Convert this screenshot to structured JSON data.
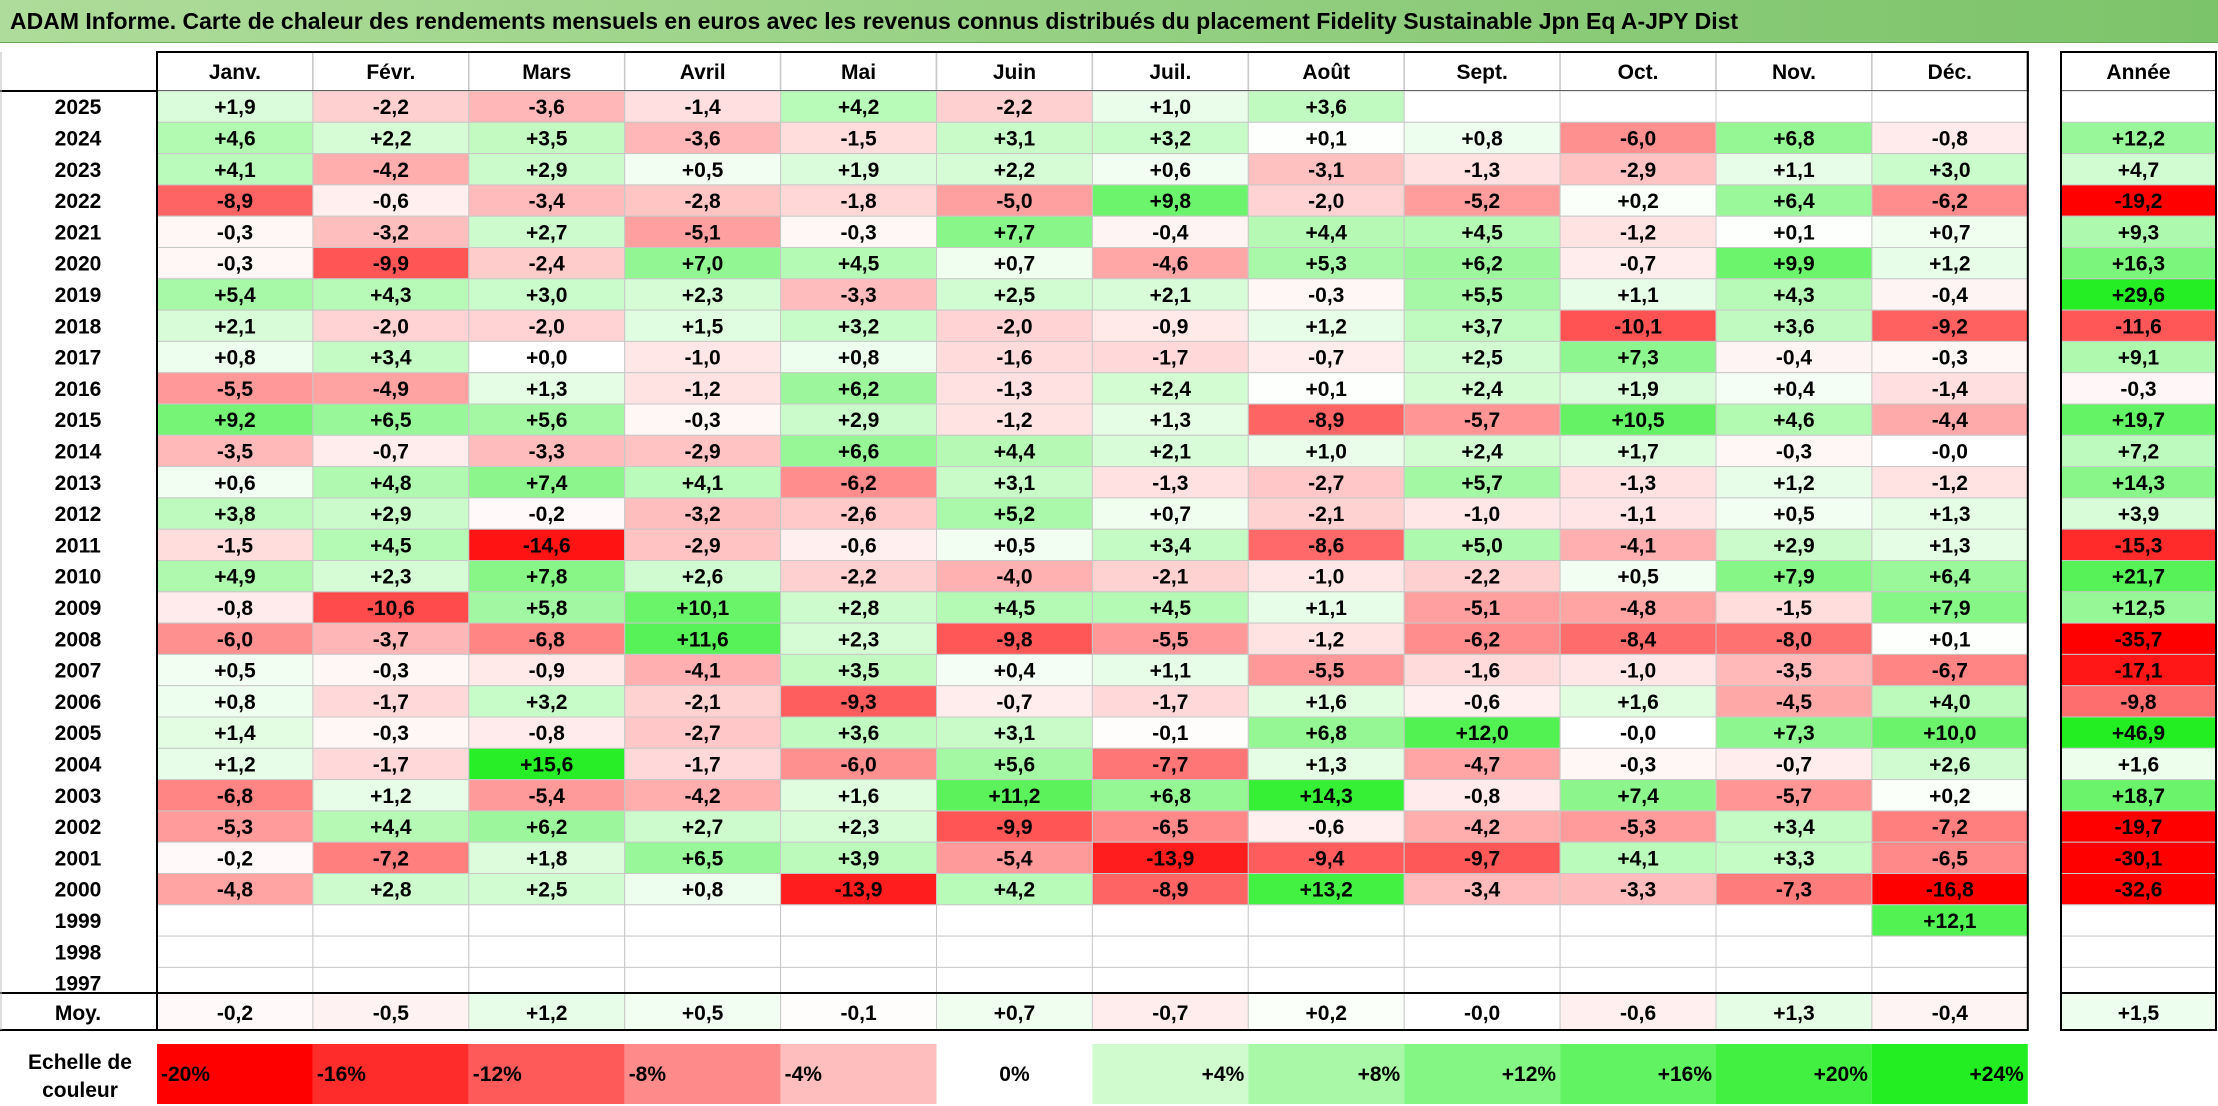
{
  "title": "ADAM Informe. Carte de chaleur des rendements mensuels en euros avec les revenus connus distribués du placement Fidelity Sustainable Jpn Eq A-JPY Dist",
  "chart_data": {
    "type": "heatmap",
    "months": [
      "Janv.",
      "Févr.",
      "Mars",
      "Avril",
      "Mai",
      "Juin",
      "Juil.",
      "Août",
      "Sept.",
      "Oct.",
      "Nov.",
      "Déc."
    ],
    "year_header": "Année",
    "years": [
      "2025",
      "2024",
      "2023",
      "2022",
      "2021",
      "2020",
      "2019",
      "2018",
      "2017",
      "2016",
      "2015",
      "2014",
      "2013",
      "2012",
      "2011",
      "2010",
      "2009",
      "2008",
      "2007",
      "2006",
      "2005",
      "2004",
      "2003",
      "2002",
      "2001",
      "2000",
      "1999",
      "1998",
      "1997"
    ],
    "values": [
      [
        "+1,9",
        "-2,2",
        "-3,6",
        "-1,4",
        "+4,2",
        "-2,2",
        "+1,0",
        "+3,6",
        "",
        "",
        "",
        ""
      ],
      [
        "+4,6",
        "+2,2",
        "+3,5",
        "-3,6",
        "-1,5",
        "+3,1",
        "+3,2",
        "+0,1",
        "+0,8",
        "-6,0",
        "+6,8",
        "-0,8"
      ],
      [
        "+4,1",
        "-4,2",
        "+2,9",
        "+0,5",
        "+1,9",
        "+2,2",
        "+0,6",
        "-3,1",
        "-1,3",
        "-2,9",
        "+1,1",
        "+3,0"
      ],
      [
        "-8,9",
        "-0,6",
        "-3,4",
        "-2,8",
        "-1,8",
        "-5,0",
        "+9,8",
        "-2,0",
        "-5,2",
        "+0,2",
        "+6,4",
        "-6,2"
      ],
      [
        "-0,3",
        "-3,2",
        "+2,7",
        "-5,1",
        "-0,3",
        "+7,7",
        "-0,4",
        "+4,4",
        "+4,5",
        "-1,2",
        "+0,1",
        "+0,7"
      ],
      [
        "-0,3",
        "-9,9",
        "-2,4",
        "+7,0",
        "+4,5",
        "+0,7",
        "-4,6",
        "+5,3",
        "+6,2",
        "-0,7",
        "+9,9",
        "+1,2"
      ],
      [
        "+5,4",
        "+4,3",
        "+3,0",
        "+2,3",
        "-3,3",
        "+2,5",
        "+2,1",
        "-0,3",
        "+5,5",
        "+1,1",
        "+4,3",
        "-0,4"
      ],
      [
        "+2,1",
        "-2,0",
        "-2,0",
        "+1,5",
        "+3,2",
        "-2,0",
        "-0,9",
        "+1,2",
        "+3,7",
        "-10,1",
        "+3,6",
        "-9,2"
      ],
      [
        "+0,8",
        "+3,4",
        "+0,0",
        "-1,0",
        "+0,8",
        "-1,6",
        "-1,7",
        "-0,7",
        "+2,5",
        "+7,3",
        "-0,4",
        "-0,3"
      ],
      [
        "-5,5",
        "-4,9",
        "+1,3",
        "-1,2",
        "+6,2",
        "-1,3",
        "+2,4",
        "+0,1",
        "+2,4",
        "+1,9",
        "+0,4",
        "-1,4"
      ],
      [
        "+9,2",
        "+6,5",
        "+5,6",
        "-0,3",
        "+2,9",
        "-1,2",
        "+1,3",
        "-8,9",
        "-5,7",
        "+10,5",
        "+4,6",
        "-4,4"
      ],
      [
        "-3,5",
        "-0,7",
        "-3,3",
        "-2,9",
        "+6,6",
        "+4,4",
        "+2,1",
        "+1,0",
        "+2,4",
        "+1,7",
        "-0,3",
        "-0,0"
      ],
      [
        "+0,6",
        "+4,8",
        "+7,4",
        "+4,1",
        "-6,2",
        "+3,1",
        "-1,3",
        "-2,7",
        "+5,7",
        "-1,3",
        "+1,2",
        "-1,2"
      ],
      [
        "+3,8",
        "+2,9",
        "-0,2",
        "-3,2",
        "-2,6",
        "+5,2",
        "+0,7",
        "-2,1",
        "-1,0",
        "-1,1",
        "+0,5",
        "+1,3"
      ],
      [
        "-1,5",
        "+4,5",
        "-14,6",
        "-2,9",
        "-0,6",
        "+0,5",
        "+3,4",
        "-8,6",
        "+5,0",
        "-4,1",
        "+2,9",
        "+1,3"
      ],
      [
        "+4,9",
        "+2,3",
        "+7,8",
        "+2,6",
        "-2,2",
        "-4,0",
        "-2,1",
        "-1,0",
        "-2,2",
        "+0,5",
        "+7,9",
        "+6,4"
      ],
      [
        "-0,8",
        "-10,6",
        "+5,8",
        "+10,1",
        "+2,8",
        "+4,5",
        "+4,5",
        "+1,1",
        "-5,1",
        "-4,8",
        "-1,5",
        "+7,9"
      ],
      [
        "-6,0",
        "-3,7",
        "-6,8",
        "+11,6",
        "+2,3",
        "-9,8",
        "-5,5",
        "-1,2",
        "-6,2",
        "-8,4",
        "-8,0",
        "+0,1"
      ],
      [
        "+0,5",
        "-0,3",
        "-0,9",
        "-4,1",
        "+3,5",
        "+0,4",
        "+1,1",
        "-5,5",
        "-1,6",
        "-1,0",
        "-3,5",
        "-6,7"
      ],
      [
        "+0,8",
        "-1,7",
        "+3,2",
        "-2,1",
        "-9,3",
        "-0,7",
        "-1,7",
        "+1,6",
        "-0,6",
        "+1,6",
        "-4,5",
        "+4,0"
      ],
      [
        "+1,4",
        "-0,3",
        "-0,8",
        "-2,7",
        "+3,6",
        "+3,1",
        "-0,1",
        "+6,8",
        "+12,0",
        "-0,0",
        "+7,3",
        "+10,0"
      ],
      [
        "+1,2",
        "-1,7",
        "+15,6",
        "-1,7",
        "-6,0",
        "+5,6",
        "-7,7",
        "+1,3",
        "-4,7",
        "-0,3",
        "-0,7",
        "+2,6"
      ],
      [
        "-6,8",
        "+1,2",
        "-5,4",
        "-4,2",
        "+1,6",
        "+11,2",
        "+6,8",
        "+14,3",
        "-0,8",
        "+7,4",
        "-5,7",
        "+0,2"
      ],
      [
        "-5,3",
        "+4,4",
        "+6,2",
        "+2,7",
        "+2,3",
        "-9,9",
        "-6,5",
        "-0,6",
        "-4,2",
        "-5,3",
        "+3,4",
        "-7,2"
      ],
      [
        "-0,2",
        "-7,2",
        "+1,8",
        "+6,5",
        "+3,9",
        "-5,4",
        "-13,9",
        "-9,4",
        "-9,7",
        "+4,1",
        "+3,3",
        "-6,5"
      ],
      [
        "-4,8",
        "+2,8",
        "+2,5",
        "+0,8",
        "-13,9",
        "+4,2",
        "-8,9",
        "+13,2",
        "-3,4",
        "-3,3",
        "-7,3",
        "-16,8"
      ],
      [
        "",
        "",
        "",
        "",
        "",
        "",
        "",
        "",
        "",
        "",
        "",
        "+12,1"
      ],
      [
        "",
        "",
        "",
        "",
        "",
        "",
        "",
        "",
        "",
        "",
        "",
        ""
      ],
      [
        "",
        "",
        "",
        "",
        "",
        "",
        "",
        "",
        "",
        "",
        "",
        ""
      ]
    ],
    "annual": [
      "",
      "+12,2",
      "+4,7",
      "-19,2",
      "+9,3",
      "+16,3",
      "+29,6",
      "-11,6",
      "+9,1",
      "-0,3",
      "+19,7",
      "+7,2",
      "+14,3",
      "+3,9",
      "-15,3",
      "+21,7",
      "+12,5",
      "-35,7",
      "-17,1",
      "-9,8",
      "+46,9",
      "+1,6",
      "+18,7",
      "-19,7",
      "-30,1",
      "-32,6",
      "",
      "",
      ""
    ],
    "average_label": "Moy.",
    "averages": [
      "-0,2",
      "-0,5",
      "+1,2",
      "+0,5",
      "-0,1",
      "+0,7",
      "-0,7",
      "+0,2",
      "-0,0",
      "-0,6",
      "+1,3",
      "-0,4"
    ],
    "average_annual": "+1,5",
    "scale_label": [
      "Echelle de",
      "couleur"
    ],
    "scale": [
      "-20%",
      "-16%",
      "-12%",
      "-8%",
      "-4%",
      "0%",
      "+4%",
      "+8%",
      "+12%",
      "+16%",
      "+20%",
      "+24%"
    ]
  }
}
